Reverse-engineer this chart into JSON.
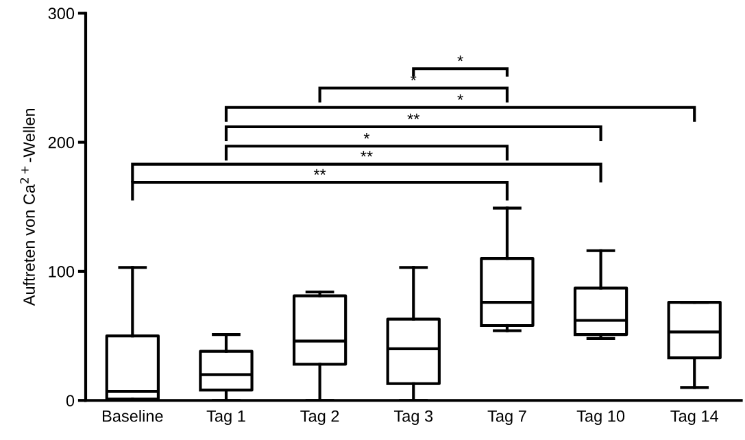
{
  "chart_data": {
    "type": "box",
    "ylabel": "Auftreten von Ca$^{2+}$-Wellen",
    "categories": [
      "Baseline",
      "Tag 1",
      "Tag 2",
      "Tag 3",
      "Tag 7",
      "Tag 10",
      "Tag 14"
    ],
    "boxes": [
      {
        "low": 0,
        "q1": 1,
        "median": 7,
        "q3": 50,
        "high": 103
      },
      {
        "low": 0,
        "q1": 8,
        "median": 20,
        "q3": 38,
        "high": 51
      },
      {
        "low": 0,
        "q1": 28,
        "median": 46,
        "q3": 81,
        "high": 84
      },
      {
        "low": 0,
        "q1": 13,
        "median": 40,
        "q3": 63,
        "high": 103
      },
      {
        "low": 54,
        "q1": 58,
        "median": 76,
        "q3": 110,
        "high": 149
      },
      {
        "low": 48,
        "q1": 51,
        "median": 62,
        "q3": 87,
        "high": 116
      },
      {
        "low": 10,
        "q1": 33,
        "median": 53,
        "q3": 76,
        "high": 76
      }
    ],
    "ylim": [
      0,
      300
    ],
    "yticks": [
      0,
      100,
      200,
      300
    ],
    "grid": false,
    "legend": false,
    "annotations": [
      "*",
      "*",
      "*",
      "**",
      "*",
      "**",
      "**"
    ]
  }
}
